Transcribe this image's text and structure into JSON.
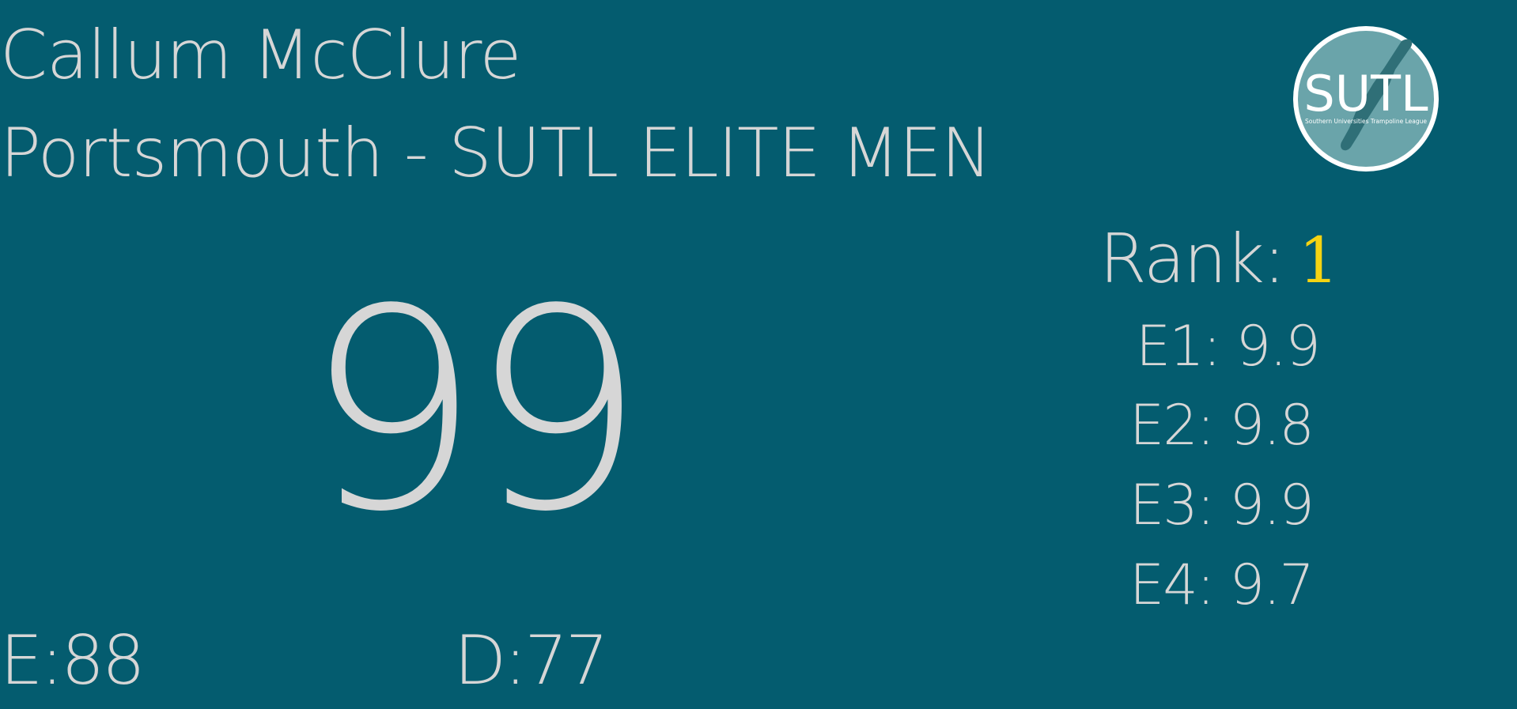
{
  "athlete": {
    "name": "Callum McClure",
    "club_category": "Portsmouth - SUTL ELITE MEN"
  },
  "score": {
    "total": "99",
    "e_label": "E:88",
    "d_label": "D:77"
  },
  "rank": {
    "label": "Rank:",
    "value": "1"
  },
  "judges": [
    {
      "text": "E1: 9.9"
    },
    {
      "text": "E2: 9.8"
    },
    {
      "text": "E3: 9.9"
    },
    {
      "text": "E4: 9.7"
    }
  ],
  "logo": {
    "text": "SUTL",
    "subtitle": "Southern Universities Trampoline League"
  },
  "colors": {
    "background": "#045c6f",
    "text": "#d6d6d6",
    "rank_highlight": "#f5d312",
    "logo_fill": "#6aa4aa"
  }
}
